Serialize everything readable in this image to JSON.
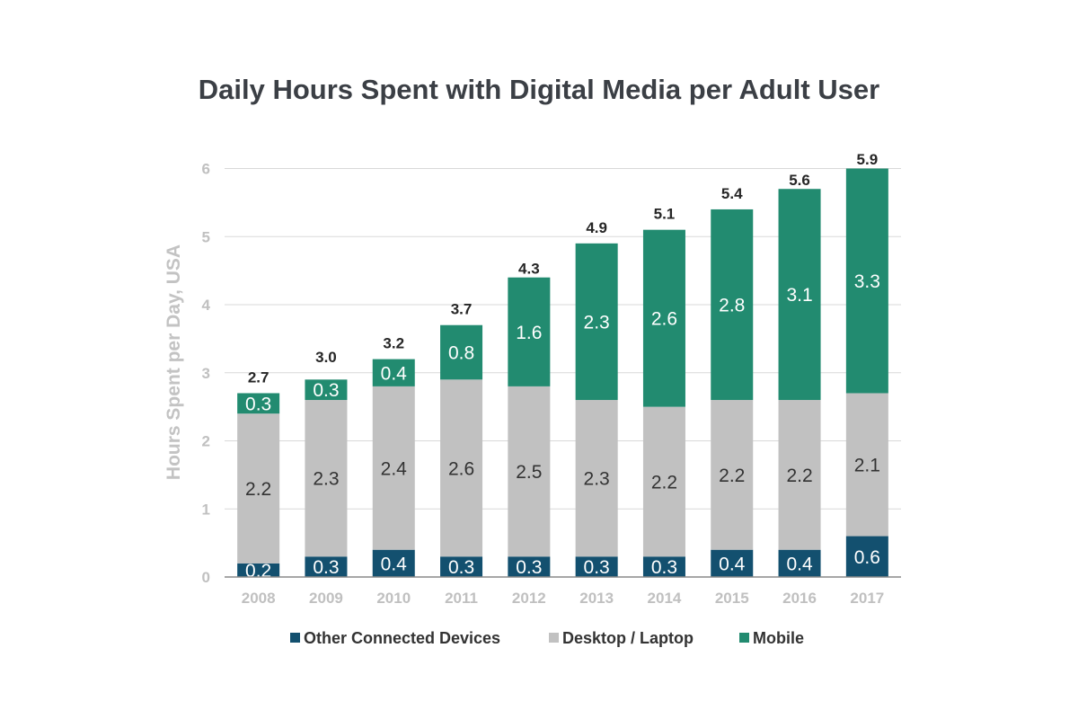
{
  "chart_data": {
    "type": "bar",
    "stacked": true,
    "title": "Daily Hours Spent with Digital Media per Adult User",
    "ylabel": "Hours Spent per Day, USA",
    "xlabel": "",
    "ylim": [
      0,
      6
    ],
    "yticks": [
      "0",
      "1",
      "2",
      "3",
      "4",
      "5",
      "6"
    ],
    "grid": true,
    "legend_position": "bottom",
    "categories": [
      "2008",
      "2009",
      "2010",
      "2011",
      "2012",
      "2013",
      "2014",
      "2015",
      "2016",
      "2017"
    ],
    "series": [
      {
        "name": "Other Connected Devices",
        "color": "#13506f",
        "label_color": "#ffffff",
        "values": [
          0.2,
          0.3,
          0.4,
          0.3,
          0.3,
          0.3,
          0.3,
          0.4,
          0.4,
          0.6
        ],
        "labels": [
          "0.2",
          "0.3",
          "0.4",
          "0.3",
          "0.3",
          "0.3",
          "0.3",
          "0.4",
          "0.4",
          "0.6"
        ]
      },
      {
        "name": "Desktop / Laptop",
        "color": "#c1c1c1",
        "label_color": "#333333",
        "values": [
          2.2,
          2.3,
          2.4,
          2.6,
          2.5,
          2.3,
          2.2,
          2.2,
          2.2,
          2.1
        ],
        "labels": [
          "2.2",
          "2.3",
          "2.4",
          "2.6",
          "2.5",
          "2.3",
          "2.2",
          "2.2",
          "2.2",
          "2.1"
        ]
      },
      {
        "name": "Mobile",
        "color": "#228b70",
        "label_color": "#ffffff",
        "values": [
          0.3,
          0.3,
          0.4,
          0.8,
          1.6,
          2.3,
          2.6,
          2.8,
          3.1,
          3.3
        ],
        "labels": [
          "0.3",
          "0.3",
          "0.4",
          "0.8",
          "1.6",
          "2.3",
          "2.6",
          "2.8",
          "3.1",
          "3.3"
        ]
      }
    ],
    "totals": [
      2.7,
      3.0,
      3.2,
      3.7,
      4.3,
      4.9,
      5.1,
      5.4,
      5.6,
      5.9
    ],
    "total_labels": [
      "2.7",
      "3.0",
      "3.2",
      "3.7",
      "4.3",
      "4.9",
      "5.1",
      "5.4",
      "5.6",
      "5.9"
    ],
    "colors": {
      "gridline": "#d9d9d9",
      "axis": "#8a8a8a"
    }
  }
}
